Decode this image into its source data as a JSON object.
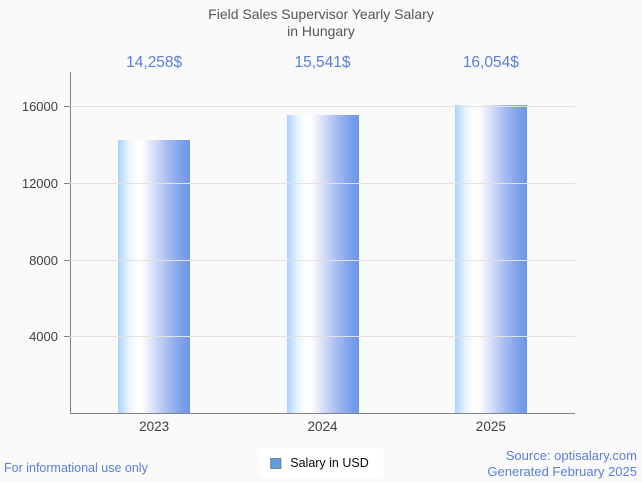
{
  "title": {
    "line1": "Field Sales Supervisor Yearly Salary",
    "line2": "in Hungary"
  },
  "chart_data": {
    "type": "bar",
    "title": "Field Sales Supervisor Yearly Salary in Hungary",
    "categories": [
      "2023",
      "2024",
      "2025"
    ],
    "series": [
      {
        "name": "Salary in USD",
        "values": [
          14258,
          15541,
          16054
        ]
      }
    ],
    "value_labels": [
      "14,258$",
      "15,541$",
      "16,054$"
    ],
    "xlabel": "",
    "ylabel": "",
    "yticks": [
      4000,
      8000,
      12000,
      16000
    ],
    "ylim": [
      0,
      17800
    ],
    "grid": true,
    "legend_position": "bottom"
  },
  "legend": {
    "label": "Salary in USD"
  },
  "footer": {
    "disclaimer": "For informational use only",
    "source": "Source: optisalary.com",
    "generated": "Generated February 2025"
  },
  "colors": {
    "accent_text_blue": "#5b7ed8",
    "title_gray": "#555555",
    "tick_label_gray": "#404040",
    "axis_gray": "#848484",
    "gridline_gray": "#e2e2e2",
    "bar_edge_left": "#a9d3fb",
    "bar_mid": "#ffffff",
    "bar_edge_right": "#6c95e8",
    "legend_swatch_fill": "#5c9fe8",
    "background": "#fafafa"
  }
}
